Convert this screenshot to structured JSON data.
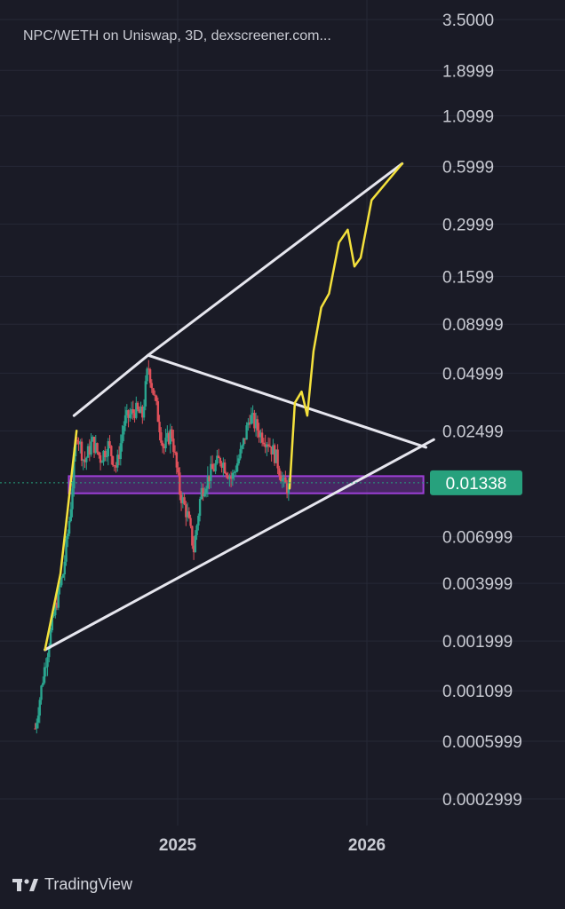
{
  "header": {
    "symbol_title": "NPC/WETH on Uniswap, 3D, dexscreener.com..."
  },
  "footer": {
    "brand_name": "TradingView"
  },
  "colors": {
    "background": "#1a1b26",
    "grid": "#262836",
    "up_candle": "#2aa58f",
    "down_candle": "#e0505a",
    "trend_lines": "#e6e6ee",
    "projection": "#f4e13c",
    "support_zone": "#9d3fd6",
    "price_badge": "#27a17d"
  },
  "chart_data": {
    "type": "candlestick",
    "title": "NPC/WETH on Uniswap, 3D, dexscreener.com...",
    "y_scale": "log",
    "ylim": [
      0.0002,
      3.5
    ],
    "y_ticks": [
      "3.5000",
      "1.8999",
      "1.0999",
      "0.5999",
      "0.2999",
      "0.1599",
      "0.08999",
      "0.04999",
      "0.02499",
      "0.01338",
      "0.006999",
      "0.003999",
      "0.001999",
      "0.001099",
      "0.0005999",
      "0.0002999"
    ],
    "x_ticks": [
      "2025",
      "2026"
    ],
    "x_range": [
      "2024-04-01",
      "2026-05-10"
    ],
    "current_price": "0.01338",
    "grid": true,
    "candle_path": [
      [
        "2024-04-01",
        0.0007
      ],
      [
        "2024-04-20",
        0.0015
      ],
      [
        "2024-05-10",
        0.003
      ],
      [
        "2024-05-25",
        0.0045
      ],
      [
        "2024-06-08",
        0.0095
      ],
      [
        "2024-06-20",
        0.025
      ],
      [
        "2024-07-05",
        0.017
      ],
      [
        "2024-07-20",
        0.022
      ],
      [
        "2024-08-05",
        0.018
      ],
      [
        "2024-08-20",
        0.021
      ],
      [
        "2024-09-05",
        0.016
      ],
      [
        "2024-09-20",
        0.028
      ],
      [
        "2024-10-10",
        0.032
      ],
      [
        "2024-10-25",
        0.03
      ],
      [
        "2024-11-05",
        0.055
      ],
      [
        "2024-11-20",
        0.034
      ],
      [
        "2024-12-05",
        0.02
      ],
      [
        "2024-12-20",
        0.025
      ],
      [
        "2025-01-05",
        0.012
      ],
      [
        "2025-01-20",
        0.009
      ],
      [
        "2025-02-01",
        0.006
      ],
      [
        "2025-02-15",
        0.012
      ],
      [
        "2025-03-05",
        0.015
      ],
      [
        "2025-03-25",
        0.018
      ],
      [
        "2025-04-15",
        0.014
      ],
      [
        "2025-05-05",
        0.02
      ],
      [
        "2025-05-20",
        0.03
      ],
      [
        "2025-06-10",
        0.024
      ],
      [
        "2025-06-25",
        0.022
      ],
      [
        "2025-07-10",
        0.018
      ],
      [
        "2025-07-25",
        0.013
      ],
      [
        "2025-08-05",
        0.0125
      ]
    ],
    "annotations": {
      "upper_resistance": [
        [
          "2024-06-15",
          0.03
        ],
        [
          "2024-11-05",
          0.062
        ],
        [
          "2026-03-10",
          0.62
        ]
      ],
      "descending_line": [
        [
          "2024-11-05",
          0.062
        ],
        [
          "2026-04-25",
          0.0205
        ]
      ],
      "ascending_support": [
        [
          "2024-04-20",
          0.0018
        ],
        [
          "2026-05-10",
          0.0225
        ]
      ],
      "support_zone": [
        [
          "2024-06-05",
          0.0118
        ],
        [
          "2026-04-20",
          0.0145
        ]
      ],
      "projection_path": [
        [
          "2024-04-20",
          0.0018
        ],
        [
          "2024-05-20",
          0.0045
        ],
        [
          "2024-06-20",
          0.025
        ]
      ],
      "projection_forecast": [
        [
          "2025-08-05",
          0.0125
        ],
        [
          "2025-08-15",
          0.035
        ],
        [
          "2025-08-28",
          0.04
        ],
        [
          "2025-09-08",
          0.03
        ],
        [
          "2025-09-20",
          0.065
        ],
        [
          "2025-10-05",
          0.11
        ],
        [
          "2025-10-20",
          0.13
        ],
        [
          "2025-11-08",
          0.24
        ],
        [
          "2025-11-25",
          0.28
        ],
        [
          "2025-12-08",
          0.18
        ],
        [
          "2025-12-20",
          0.2
        ],
        [
          "2026-01-10",
          0.4
        ],
        [
          "2026-03-10",
          0.62
        ]
      ]
    }
  }
}
